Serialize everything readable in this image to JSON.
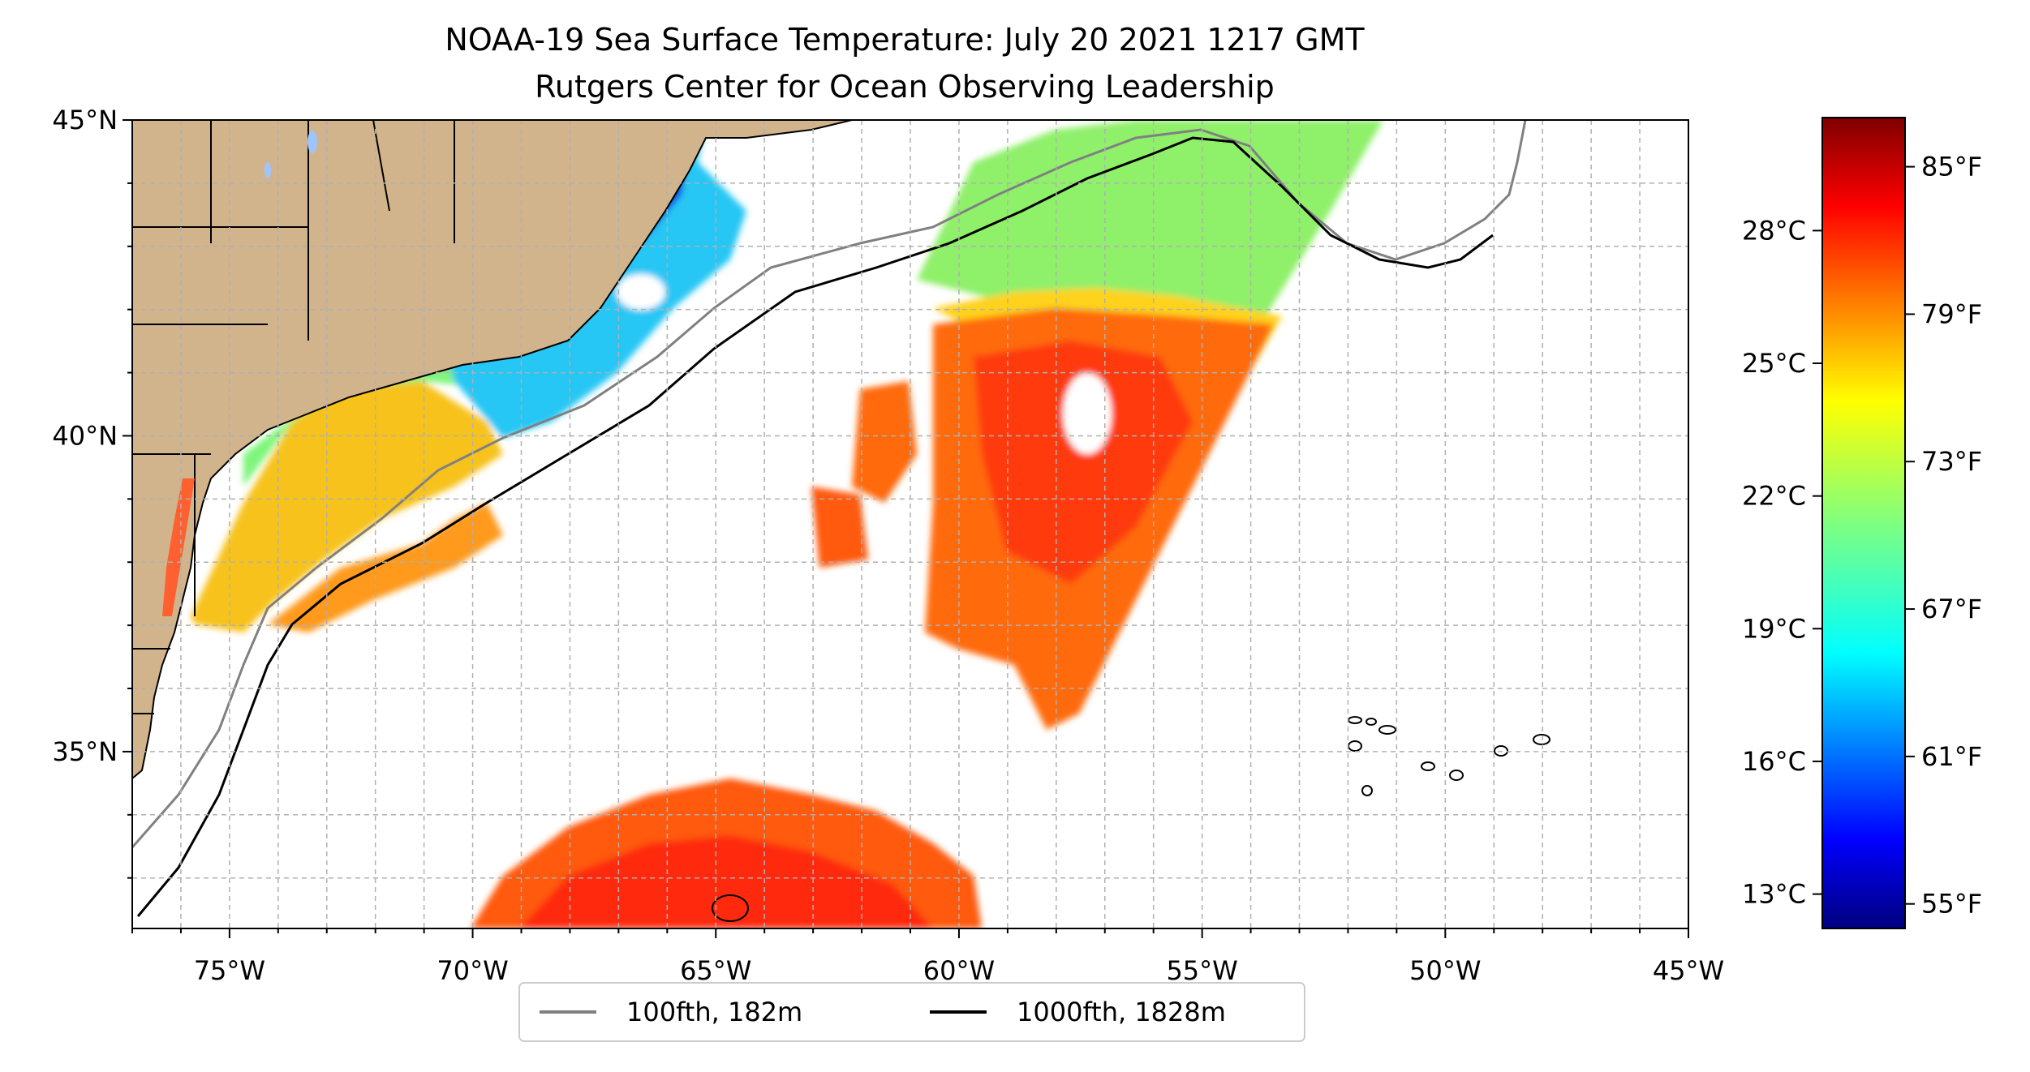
{
  "title": {
    "line1": "NOAA-19 Sea Surface Temperature: July 20 2021 1217 GMT",
    "line2": "Rutgers Center for Ocean Observing Leadership"
  },
  "map": {
    "lon_range": [
      -77,
      -45
    ],
    "lat_range": [
      32.2,
      45
    ],
    "grid": true,
    "x_ticks": [
      "75°W",
      "70°W",
      "65°W",
      "60°W",
      "55°W",
      "50°W",
      "45°W"
    ],
    "y_ticks": [
      "45°N",
      "40°N",
      "35°N"
    ],
    "land_color": "#D2B48C",
    "water_color": "#ffffff"
  },
  "legend": {
    "placement": "bottom-center",
    "items": [
      {
        "label": "100fth, 182m",
        "color": "#808080"
      },
      {
        "label": "1000fth, 1828m",
        "color": "#000000"
      }
    ]
  },
  "colorbar": {
    "colormap": "jet",
    "celsius_ticks": [
      "28°C",
      "25°C",
      "22°C",
      "19°C",
      "16°C",
      "13°C"
    ],
    "fahrenheit_ticks": [
      "85°F",
      "79°F",
      "73°F",
      "67°F",
      "61°F",
      "55°F"
    ],
    "f_range": [
      54,
      87
    ]
  }
}
